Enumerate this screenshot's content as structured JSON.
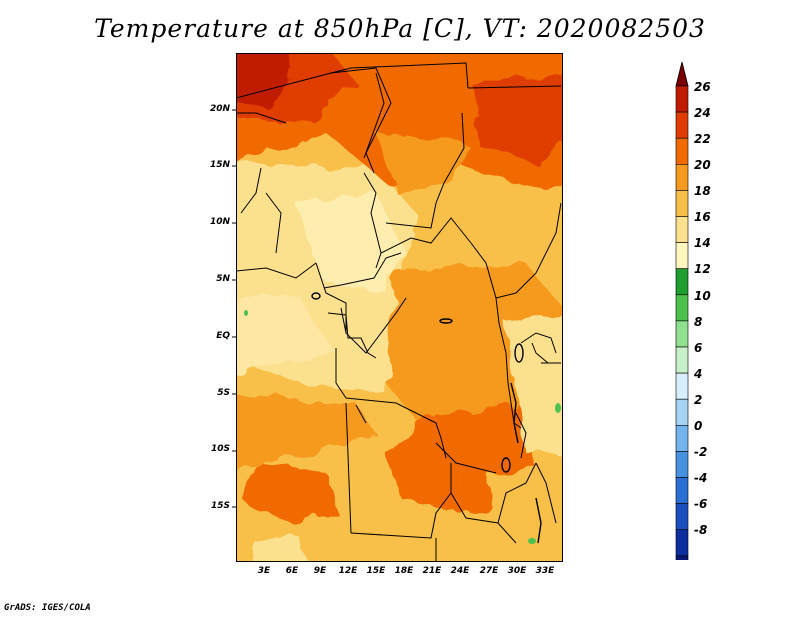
{
  "title": "Temperature at 850hPa [C], VT: 2020082503",
  "footer": "GrADS: IGES/COLA",
  "y_axis": [
    "20N",
    "15N",
    "10N",
    "5N",
    "EQ",
    "5S",
    "10S",
    "15S"
  ],
  "x_axis": [
    "3E",
    "6E",
    "9E",
    "12E",
    "15E",
    "18E",
    "21E",
    "24E",
    "27E",
    "30E",
    "33E"
  ],
  "colorbar": {
    "labels": [
      "26",
      "24",
      "22",
      "20",
      "18",
      "16",
      "14",
      "12",
      "10",
      "8",
      "6",
      "4",
      "2",
      "0",
      "-2",
      "-4",
      "-6",
      "-8"
    ],
    "colors": [
      "#7a0000",
      "#c01a00",
      "#e03c00",
      "#f06a00",
      "#f59a1f",
      "#f8bf48",
      "#fbe08e",
      "#fff7c0",
      "#1e9e2e",
      "#4cc24c",
      "#8fe08f",
      "#c8f0c8",
      "#d8eefc",
      "#a7d3f5",
      "#72b4ec",
      "#4791e0",
      "#2a6fd3",
      "#1a4fc0",
      "#0c2e9e",
      "#061672",
      "#d0d0f0"
    ]
  }
}
